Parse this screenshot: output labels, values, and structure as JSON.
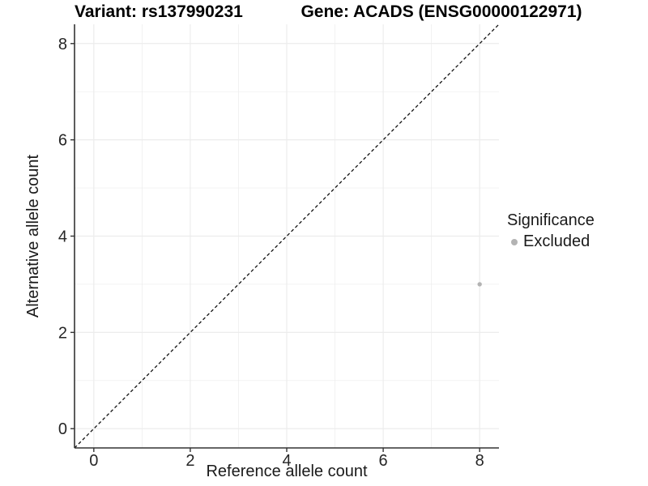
{
  "header": {
    "variant_title": "Variant: rs137990231",
    "gene_title": "Gene: ACADS (ENSG00000122971)"
  },
  "chart_data": {
    "type": "scatter",
    "xlabel": "Reference allele count",
    "ylabel": "Alternative allele count",
    "xlim": [
      -0.4,
      8.4
    ],
    "ylim": [
      -0.4,
      8.4
    ],
    "xticks": [
      0,
      2,
      4,
      6,
      8
    ],
    "yticks": [
      0,
      2,
      4,
      6,
      8
    ],
    "grid": "on",
    "gridline_interval": 1,
    "series": [
      {
        "name": "Excluded",
        "color": "#b3b3b3",
        "points": [
          {
            "x": 8,
            "y": 3
          }
        ]
      }
    ],
    "identity_line": {
      "slope": 1,
      "intercept": 0,
      "style": "dashed",
      "color": "#111111"
    },
    "legend": {
      "title": "Significance",
      "position": "right",
      "entries": [
        {
          "label": "Excluded",
          "color": "#b3b3b3"
        }
      ]
    }
  },
  "colors": {
    "background": "#ffffff",
    "gridline": "#ececec",
    "axis_line": "#333333",
    "axis_text": "#262626",
    "title_text": "#000000"
  }
}
